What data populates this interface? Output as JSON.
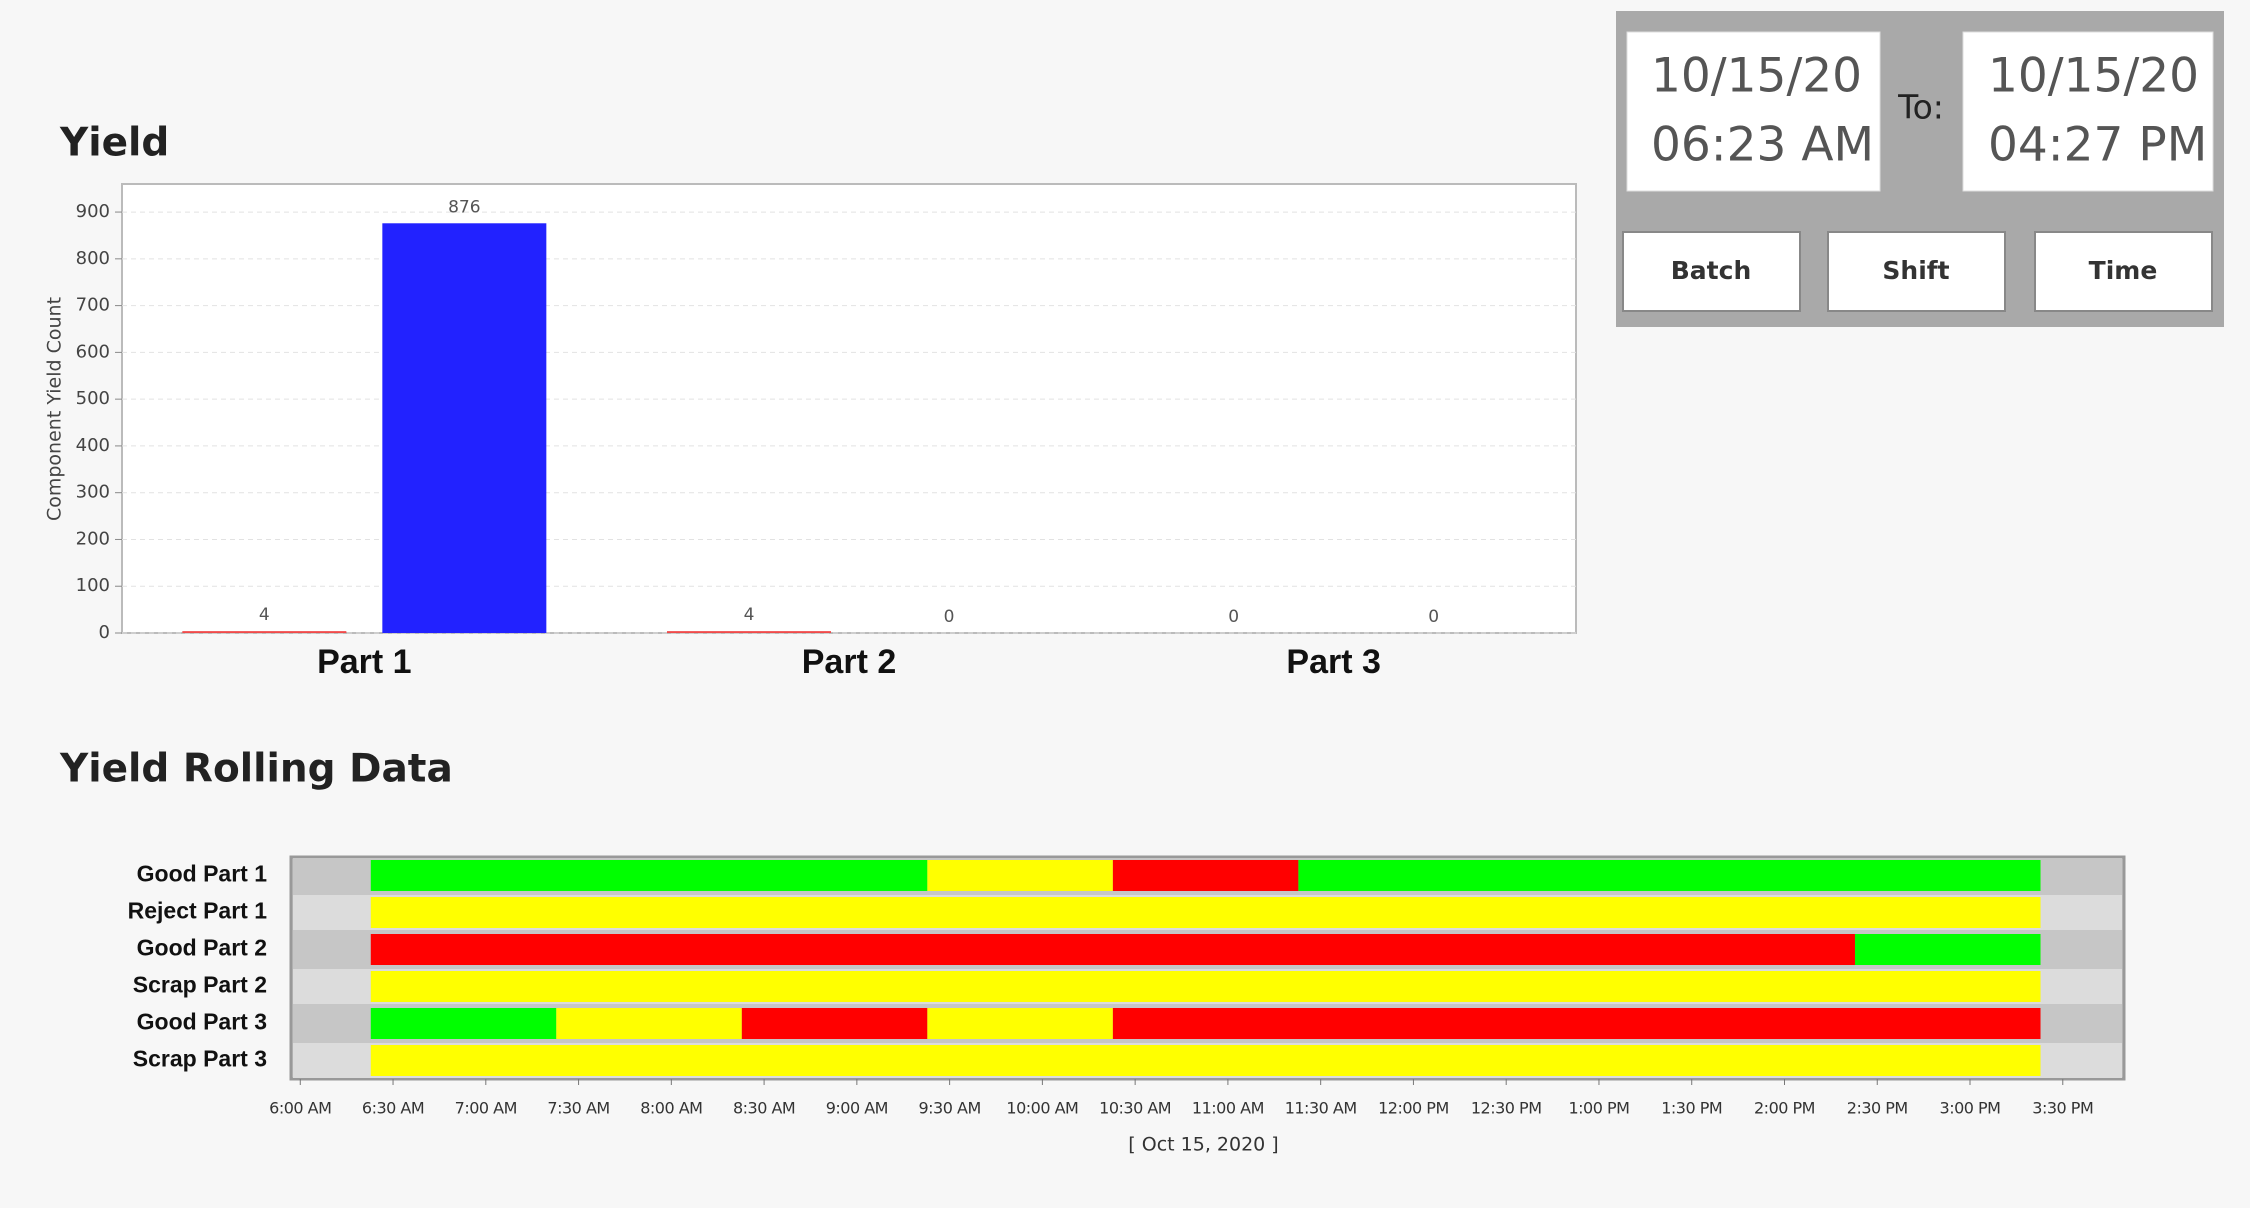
{
  "chart_data": [
    {
      "type": "bar",
      "title": "Yield",
      "y_label": "Component Yield Count",
      "categories": [
        "Part 1",
        "Part 2",
        "Part 3"
      ],
      "series": [
        {
          "color": "#f04a4a",
          "values": [
            4,
            4,
            0
          ]
        },
        {
          "color": "#2222ff",
          "values": [
            876,
            0,
            0
          ]
        }
      ],
      "ylim": [
        0,
        960
      ],
      "yticks": [
        0,
        100,
        200,
        300,
        400,
        500,
        600,
        700,
        800,
        900
      ],
      "grid": true
    },
    {
      "type": "timeline",
      "title": "Yield Rolling Data",
      "x_label": "[ Oct 15, 2020 ]",
      "xlim": [
        5.95,
        15.83
      ],
      "xticks": [
        {
          "value": 6,
          "label": "6:00 AM"
        },
        {
          "value": 6.5,
          "label": "6:30 AM"
        },
        {
          "value": 7,
          "label": "7:00 AM"
        },
        {
          "value": 7.5,
          "label": "7:30 AM"
        },
        {
          "value": 8,
          "label": "8:00 AM"
        },
        {
          "value": 8.5,
          "label": "8:30 AM"
        },
        {
          "value": 9,
          "label": "9:00 AM"
        },
        {
          "value": 9.5,
          "label": "9:30 AM"
        },
        {
          "value": 10,
          "label": "10:00 AM"
        },
        {
          "value": 10.5,
          "label": "10:30 AM"
        },
        {
          "value": 11,
          "label": "11:00 AM"
        },
        {
          "value": 11.5,
          "label": "11:30 AM"
        },
        {
          "value": 12,
          "label": "12:00 PM"
        },
        {
          "value": 12.5,
          "label": "12:30 PM"
        },
        {
          "value": 13,
          "label": "1:00 PM"
        },
        {
          "value": 13.5,
          "label": "1:30 PM"
        },
        {
          "value": 14,
          "label": "2:00 PM"
        },
        {
          "value": 14.5,
          "label": "2:30 PM"
        },
        {
          "value": 15,
          "label": "3:00 PM"
        },
        {
          "value": 15.5,
          "label": "3:30 PM"
        }
      ],
      "rows": [
        {
          "name": "Good Part 1",
          "segments": [
            {
              "start": 6.38,
              "end": 9.38,
              "color": "#00ff00"
            },
            {
              "start": 9.38,
              "end": 10.38,
              "color": "#ffff00"
            },
            {
              "start": 10.38,
              "end": 11.38,
              "color": "#ff0000"
            },
            {
              "start": 11.38,
              "end": 15.38,
              "color": "#00ff00"
            }
          ]
        },
        {
          "name": "Reject Part 1",
          "segments": [
            {
              "start": 6.38,
              "end": 15.38,
              "color": "#ffff00"
            }
          ]
        },
        {
          "name": "Good Part 2",
          "segments": [
            {
              "start": 6.38,
              "end": 14.38,
              "color": "#ff0000"
            },
            {
              "start": 14.38,
              "end": 15.38,
              "color": "#00ff00"
            }
          ]
        },
        {
          "name": "Scrap Part 2",
          "segments": [
            {
              "start": 6.38,
              "end": 15.38,
              "color": "#ffff00"
            }
          ]
        },
        {
          "name": "Good Part 3",
          "segments": [
            {
              "start": 6.38,
              "end": 7.38,
              "color": "#00ff00"
            },
            {
              "start": 7.38,
              "end": 8.38,
              "color": "#ffff00"
            },
            {
              "start": 8.38,
              "end": 9.38,
              "color": "#ff0000"
            },
            {
              "start": 9.38,
              "end": 10.38,
              "color": "#ffff00"
            },
            {
              "start": 10.38,
              "end": 15.38,
              "color": "#ff0000"
            }
          ]
        },
        {
          "name": "Scrap Part 3",
          "segments": [
            {
              "start": 6.38,
              "end": 15.38,
              "color": "#ffff00"
            }
          ]
        }
      ]
    }
  ],
  "date_range": {
    "from": {
      "date": "10/15/20",
      "time": "06:23 AM"
    },
    "to_label": "To:",
    "to": {
      "date": "10/15/20",
      "time": "04:27 PM"
    }
  },
  "buttons": [
    "Batch",
    "Shift",
    "Time"
  ]
}
